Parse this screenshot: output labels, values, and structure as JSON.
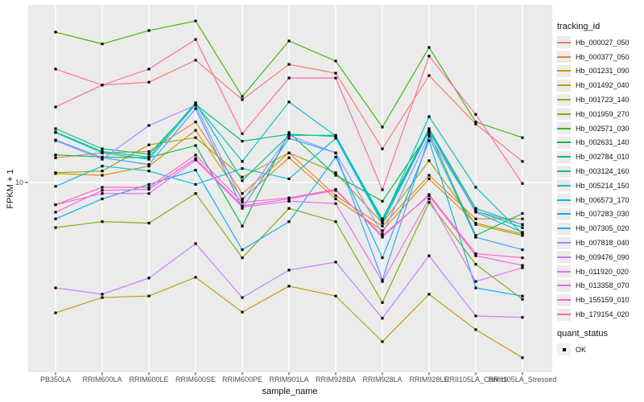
{
  "figure": {
    "panel_bg": "#EBEBEB",
    "grid_color": "#FFFFFF",
    "tick_color": "#333333",
    "point_color": "#000000",
    "axis_text_color": "#4D4D4D"
  },
  "axes": {
    "x_title": "sample_name",
    "y_title": "FPKM + 1",
    "y_tick_label": "10"
  },
  "legend": {
    "tracking_title": "tracking_id",
    "quant_title": "quant_status",
    "quant_items": [
      {
        "label": "OK"
      }
    ]
  },
  "chart_data": {
    "type": "line",
    "title": "",
    "xlabel": "sample_name",
    "ylabel": "FPKM + 1",
    "y_scale": "log10",
    "y_ticks": [
      10
    ],
    "grid": "major-only",
    "legend_position": "right",
    "point_shape": "filled-square",
    "categories": [
      "PB350LA",
      "RRIM600LA",
      "RRIM600LE",
      "RRIM600SE",
      "RRIM600PE",
      "RRIM901LA",
      "RRIM928BA",
      "RRIM928LA",
      "RRIM928LE",
      "RRII105LA_Control",
      "RRII105LA_Stressed"
    ],
    "series": [
      {
        "name": "Hb_000027_050",
        "color": "#F8766D",
        "values": [
          33.3,
          28.1,
          29.0,
          36.6,
          24.1,
          35.0,
          31.9,
          14.3,
          31.1,
          18.6,
          12.5
        ]
      },
      {
        "name": "Hb_000377_050",
        "color": "#EA8331",
        "values": [
          13.0,
          13.7,
          13.9,
          19.0,
          8.9,
          13.7,
          8.7,
          6.3,
          10.8,
          6.8,
          6.8
        ]
      },
      {
        "name": "Hb_001231_090",
        "color": "#D89000",
        "values": [
          11.0,
          10.8,
          11.9,
          17.4,
          8.4,
          13.0,
          8.4,
          6.0,
          10.4,
          6.5,
          5.8
        ]
      },
      {
        "name": "Hb_001492_040",
        "color": "#C09B00",
        "values": [
          2.51,
          2.95,
          3.0,
          3.66,
          2.53,
          3.33,
          3.0,
          1.85,
          3.06,
          2.1,
          1.56
        ]
      },
      {
        "name": "Hb_001723_140",
        "color": "#A3A500",
        "values": [
          11.1,
          11.3,
          14.9,
          16.1,
          10.6,
          13.7,
          11.1,
          6.5,
          12.6,
          6.4,
          5.7
        ]
      },
      {
        "name": "Hb_001959_270",
        "color": "#7CAE00",
        "values": [
          6.2,
          6.6,
          6.5,
          8.9,
          4.5,
          7.6,
          6.6,
          2.8,
          8.1,
          4.2,
          2.9
        ]
      },
      {
        "name": "Hb_002571_030",
        "color": "#39B600",
        "values": [
          49.3,
          43.5,
          50.1,
          55.5,
          24.9,
          44.9,
          36.3,
          18.0,
          41.9,
          19.0,
          16.1
        ]
      },
      {
        "name": "Hb_002631_140",
        "color": "#00BB4E",
        "values": [
          13.4,
          13.1,
          13.0,
          14.8,
          6.3,
          17.0,
          10.8,
          8.2,
          17.0,
          5.7,
          7.2
        ]
      },
      {
        "name": "Hb_002784_010",
        "color": "#00BF7D",
        "values": [
          17.7,
          14.3,
          13.5,
          22.9,
          15.5,
          16.7,
          16.3,
          6.8,
          17.7,
          7.6,
          6.4
        ]
      },
      {
        "name": "Hb_003124_160",
        "color": "#00C1A3",
        "values": [
          17.1,
          13.9,
          13.1,
          23.3,
          10.2,
          16.5,
          16.5,
          6.7,
          17.4,
          7.4,
          6.2
        ]
      },
      {
        "name": "Hb_005214_150",
        "color": "#00BFC4",
        "values": [
          17.0,
          13.7,
          12.8,
          22.9,
          12.5,
          23.5,
          16.4,
          6.6,
          20.1,
          9.5,
          5.8
        ]
      },
      {
        "name": "Hb_006573_170",
        "color": "#00BAE0",
        "values": [
          9.6,
          11.9,
          11.3,
          9.8,
          11.6,
          10.4,
          16.0,
          6.5,
          17.3,
          7.3,
          5.9
        ]
      },
      {
        "name": "Hb_007283_030",
        "color": "#00B0F6",
        "values": [
          6.8,
          8.4,
          9.8,
          11.4,
          4.9,
          6.6,
          13.1,
          4.5,
          15.6,
          3.27,
          3.0
        ]
      },
      {
        "name": "Hb_007305_020",
        "color": "#35A2FF",
        "values": [
          15.7,
          13.0,
          12.1,
          21.9,
          7.6,
          16.0,
          13.7,
          3.56,
          16.3,
          5.6,
          4.9
        ]
      },
      {
        "name": "Hb_007818_040",
        "color": "#9590FF",
        "values": [
          15.6,
          12.8,
          18.3,
          22.7,
          8.2,
          16.5,
          13.7,
          5.8,
          16.5,
          7.4,
          6.4
        ]
      },
      {
        "name": "Hb_009476_090",
        "color": "#C77CFF",
        "values": [
          3.27,
          3.06,
          3.63,
          5.23,
          2.95,
          3.95,
          4.3,
          2.37,
          4.6,
          2.43,
          2.39
        ]
      },
      {
        "name": "Hb_011920_020",
        "color": "#E76BF3",
        "values": [
          7.9,
          8.9,
          8.9,
          12.7,
          7.7,
          8.2,
          8.0,
          3.5,
          8.4,
          3.5,
          4.05
        ]
      },
      {
        "name": "Hb_013358_070",
        "color": "#FA62DB",
        "values": [
          7.3,
          9.2,
          9.3,
          12.9,
          7.8,
          8.4,
          9.2,
          5.7,
          8.7,
          4.6,
          4.15
        ]
      },
      {
        "name": "Hb_155159_010",
        "color": "#FF61C3",
        "values": [
          7.9,
          9.5,
          9.5,
          13.4,
          8.1,
          8.5,
          9.3,
          5.6,
          8.8,
          4.7,
          4.5
        ]
      },
      {
        "name": "Hb_179154_020",
        "color": "#FF67A4",
        "values": [
          22.3,
          28.1,
          33.3,
          45.6,
          16.8,
          30.3,
          30.3,
          9.26,
          38.2,
          20.6,
          9.9
        ]
      }
    ]
  }
}
